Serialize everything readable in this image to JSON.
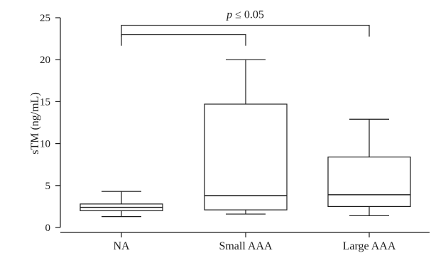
{
  "chart_data": {
    "type": "box",
    "title": "",
    "xlabel": "",
    "ylabel": "sTM (ng/mL)",
    "ylim": [
      0,
      25
    ],
    "yticks": [
      0,
      5,
      10,
      15,
      20,
      25
    ],
    "grid": false,
    "legend": "none",
    "categories": [
      "NA",
      "Small AAA",
      "Large AAA"
    ],
    "boxes": [
      {
        "category": "NA",
        "min": 1.3,
        "q1": 2.0,
        "median": 2.4,
        "q3": 2.8,
        "max": 4.3
      },
      {
        "category": "Small AAA",
        "min": 1.6,
        "q1": 2.1,
        "median": 3.8,
        "q3": 14.7,
        "max": 20.0
      },
      {
        "category": "Large AAA",
        "min": 1.4,
        "q1": 2.5,
        "median": 3.9,
        "q3": 8.4,
        "max": 12.9
      }
    ],
    "significance": {
      "label_italic": "p",
      "label_rest": " ≤ 0.05",
      "brackets": [
        {
          "from": "NA",
          "to": "Small AAA",
          "y": 23.0
        },
        {
          "from": "NA",
          "to": "Large AAA",
          "y": 24.1
        }
      ]
    },
    "colors": {
      "stroke": "#1a1a1a",
      "fill": "#ffffff"
    }
  }
}
